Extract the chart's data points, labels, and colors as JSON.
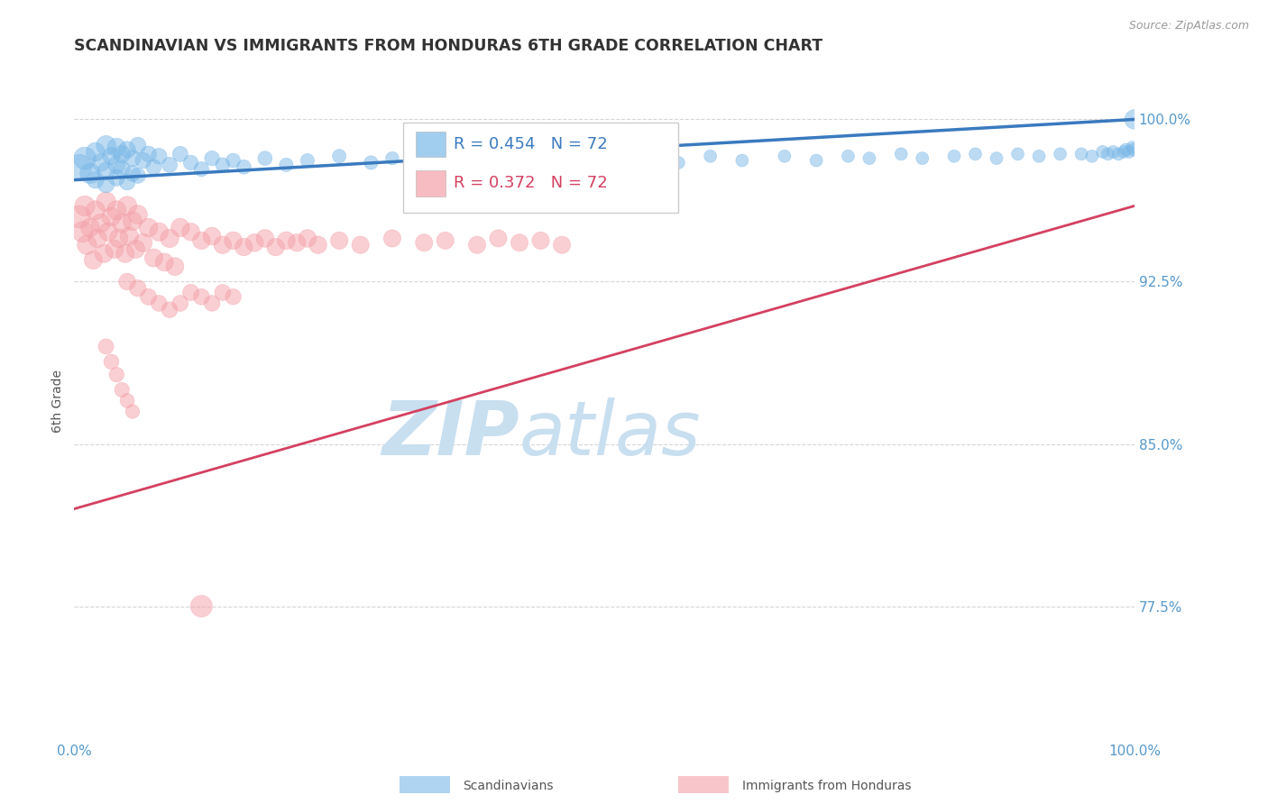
{
  "title": "SCANDINAVIAN VS IMMIGRANTS FROM HONDURAS 6TH GRADE CORRELATION CHART",
  "source_text": "Source: ZipAtlas.com",
  "ylabel": "6th Grade",
  "yticks_right": [
    0.775,
    0.85,
    0.925,
    1.0
  ],
  "ytick_labels_right": [
    "77.5%",
    "85.0%",
    "92.5%",
    "100.0%"
  ],
  "xmin": 0.0,
  "xmax": 1.0,
  "ymin": 0.715,
  "ymax": 1.025,
  "blue_R": 0.454,
  "blue_N": 72,
  "pink_R": 0.372,
  "pink_N": 72,
  "blue_color": "#7ab8e8",
  "pink_color": "#f4a0a8",
  "blue_line_color": "#3a7abf",
  "pink_line_color": "#d44060",
  "legend_R_color": "#3a7abf",
  "legend_pink_color": "#d44060",
  "watermark_ZIP_color": "#c8dff0",
  "watermark_atlas_color": "#c8dff0",
  "title_color": "#333333",
  "source_color": "#999999",
  "axis_label_color": "#555555",
  "tick_label_color": "#5599cc",
  "grid_color": "#bbbbbb",
  "blue_line_y0": 0.972,
  "blue_line_y1": 1.0,
  "pink_line_y0": 0.82,
  "pink_line_y1": 0.96,
  "blue_scatter_x": [
    0.005,
    0.01,
    0.015,
    0.02,
    0.02,
    0.025,
    0.03,
    0.03,
    0.03,
    0.035,
    0.04,
    0.04,
    0.04,
    0.045,
    0.045,
    0.05,
    0.05,
    0.055,
    0.055,
    0.06,
    0.06,
    0.065,
    0.07,
    0.075,
    0.08,
    0.09,
    0.1,
    0.11,
    0.12,
    0.13,
    0.14,
    0.15,
    0.16,
    0.18,
    0.2,
    0.22,
    0.25,
    0.28,
    0.3,
    0.33,
    0.38,
    0.42,
    0.45,
    0.5,
    0.53,
    0.57,
    0.6,
    0.63,
    0.67,
    0.7,
    0.73,
    0.75,
    0.78,
    0.8,
    0.83,
    0.85,
    0.87,
    0.89,
    0.91,
    0.93,
    0.95,
    0.96,
    0.97,
    0.975,
    0.98,
    0.985,
    0.99,
    0.992,
    0.995,
    0.998,
    0.999,
    1.0
  ],
  "blue_scatter_y": [
    0.978,
    0.982,
    0.975,
    0.985,
    0.972,
    0.98,
    0.988,
    0.976,
    0.97,
    0.983,
    0.987,
    0.979,
    0.973,
    0.984,
    0.977,
    0.986,
    0.971,
    0.982,
    0.975,
    0.988,
    0.974,
    0.981,
    0.984,
    0.978,
    0.983,
    0.979,
    0.984,
    0.98,
    0.977,
    0.982,
    0.979,
    0.981,
    0.978,
    0.982,
    0.979,
    0.981,
    0.983,
    0.98,
    0.982,
    0.979,
    0.982,
    0.981,
    0.983,
    0.981,
    0.982,
    0.98,
    0.983,
    0.981,
    0.983,
    0.981,
    0.983,
    0.982,
    0.984,
    0.982,
    0.983,
    0.984,
    0.982,
    0.984,
    0.983,
    0.984,
    0.984,
    0.983,
    0.985,
    0.984,
    0.985,
    0.984,
    0.985,
    0.986,
    0.985,
    0.987,
    0.986,
    1.0
  ],
  "blue_scatter_sizes": [
    200,
    160,
    130,
    110,
    90,
    100,
    120,
    100,
    90,
    95,
    110,
    95,
    85,
    95,
    85,
    90,
    80,
    85,
    80,
    85,
    75,
    80,
    80,
    75,
    80,
    75,
    75,
    70,
    70,
    70,
    65,
    65,
    65,
    65,
    60,
    60,
    60,
    60,
    55,
    55,
    55,
    55,
    55,
    55,
    50,
    50,
    50,
    50,
    50,
    50,
    50,
    50,
    50,
    50,
    50,
    50,
    50,
    50,
    50,
    50,
    50,
    50,
    50,
    50,
    50,
    50,
    50,
    50,
    50,
    50,
    50,
    120
  ],
  "pink_scatter_x": [
    0.005,
    0.008,
    0.01,
    0.012,
    0.015,
    0.018,
    0.02,
    0.022,
    0.025,
    0.028,
    0.03,
    0.032,
    0.035,
    0.038,
    0.04,
    0.042,
    0.045,
    0.048,
    0.05,
    0.052,
    0.055,
    0.058,
    0.06,
    0.065,
    0.07,
    0.075,
    0.08,
    0.085,
    0.09,
    0.095,
    0.1,
    0.11,
    0.12,
    0.13,
    0.14,
    0.15,
    0.16,
    0.17,
    0.18,
    0.19,
    0.2,
    0.21,
    0.22,
    0.23,
    0.25,
    0.27,
    0.3,
    0.33,
    0.35,
    0.38,
    0.4,
    0.42,
    0.44,
    0.46,
    0.05,
    0.06,
    0.07,
    0.08,
    0.09,
    0.1,
    0.11,
    0.12,
    0.13,
    0.14,
    0.15,
    0.03,
    0.035,
    0.04,
    0.045,
    0.05,
    0.055,
    0.12
  ],
  "pink_scatter_y": [
    0.955,
    0.948,
    0.96,
    0.942,
    0.95,
    0.935,
    0.958,
    0.945,
    0.952,
    0.938,
    0.962,
    0.948,
    0.955,
    0.94,
    0.958,
    0.945,
    0.952,
    0.938,
    0.96,
    0.946,
    0.953,
    0.94,
    0.956,
    0.943,
    0.95,
    0.936,
    0.948,
    0.934,
    0.945,
    0.932,
    0.95,
    0.948,
    0.944,
    0.946,
    0.942,
    0.944,
    0.941,
    0.943,
    0.945,
    0.941,
    0.944,
    0.943,
    0.945,
    0.942,
    0.944,
    0.942,
    0.945,
    0.943,
    0.944,
    0.942,
    0.945,
    0.943,
    0.944,
    0.942,
    0.925,
    0.922,
    0.918,
    0.915,
    0.912,
    0.915,
    0.92,
    0.918,
    0.915,
    0.92,
    0.918,
    0.895,
    0.888,
    0.882,
    0.875,
    0.87,
    0.865,
    0.775
  ],
  "pink_scatter_sizes": [
    160,
    140,
    130,
    120,
    110,
    105,
    115,
    108,
    112,
    105,
    120,
    108,
    112,
    105,
    115,
    108,
    112,
    105,
    118,
    108,
    112,
    105,
    115,
    105,
    110,
    105,
    108,
    102,
    108,
    102,
    108,
    100,
    98,
    100,
    98,
    100,
    98,
    100,
    100,
    98,
    100,
    98,
    100,
    98,
    96,
    96,
    95,
    95,
    95,
    95,
    95,
    95,
    95,
    95,
    90,
    88,
    85,
    82,
    80,
    82,
    85,
    82,
    80,
    82,
    80,
    75,
    72,
    70,
    68,
    65,
    62,
    150
  ]
}
